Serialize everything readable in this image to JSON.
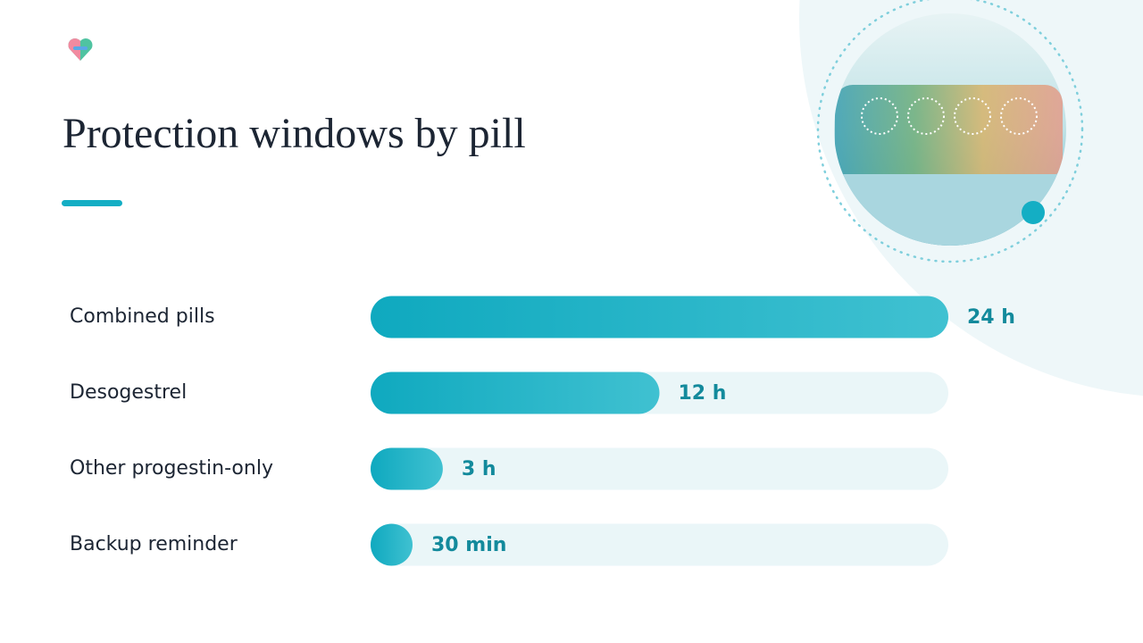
{
  "chart_data": {
    "type": "bar",
    "title": "Protection windows by pill",
    "categories": [
      "Combined pills",
      "Desogestrel",
      "Other progestin-only",
      "Backup reminder"
    ],
    "values": [
      24,
      12,
      3,
      0.5
    ],
    "value_labels": [
      "24 h",
      "12 h",
      "3 h",
      "30 min"
    ],
    "xlim": [
      0,
      24
    ],
    "color": "#1ab0c4",
    "track_color": "#eaf6f8"
  }
}
